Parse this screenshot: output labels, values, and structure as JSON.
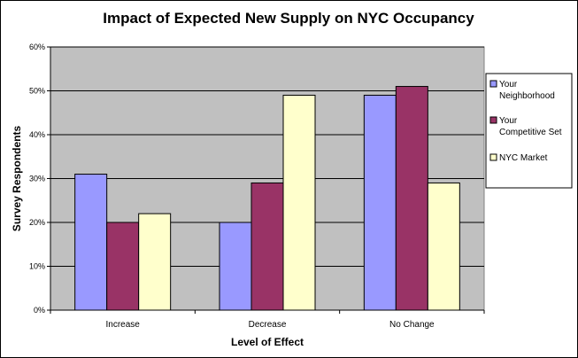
{
  "chart_data": {
    "type": "bar",
    "title": "Impact of Expected New Supply on NYC Occupancy",
    "xlabel": "Level of Effect",
    "ylabel": "Survey Respondents",
    "categories": [
      "Increase",
      "Decrease",
      "No Change"
    ],
    "series": [
      {
        "name": "Your Neighborhood",
        "name_lines": [
          "Your",
          "Neighborhood"
        ],
        "values": [
          0.31,
          0.2,
          0.49
        ],
        "color": "#9999ff"
      },
      {
        "name": "Your Competitive Set",
        "name_lines": [
          "Your",
          "Competitive Set"
        ],
        "values": [
          0.2,
          0.29,
          0.51
        ],
        "color": "#993366"
      },
      {
        "name": "NYC Market",
        "name_lines": [
          "NYC Market"
        ],
        "values": [
          0.22,
          0.49,
          0.29
        ],
        "color": "#ffffcc"
      }
    ],
    "ylim": [
      0,
      0.6
    ],
    "yticks": [
      0,
      0.1,
      0.2,
      0.3,
      0.4,
      0.5,
      0.6
    ],
    "ytick_labels": [
      "0%",
      "10%",
      "20%",
      "30%",
      "40%",
      "50%",
      "60%"
    ],
    "grid": true,
    "plot_background": "#c0c0c0",
    "legend_position": "right"
  }
}
